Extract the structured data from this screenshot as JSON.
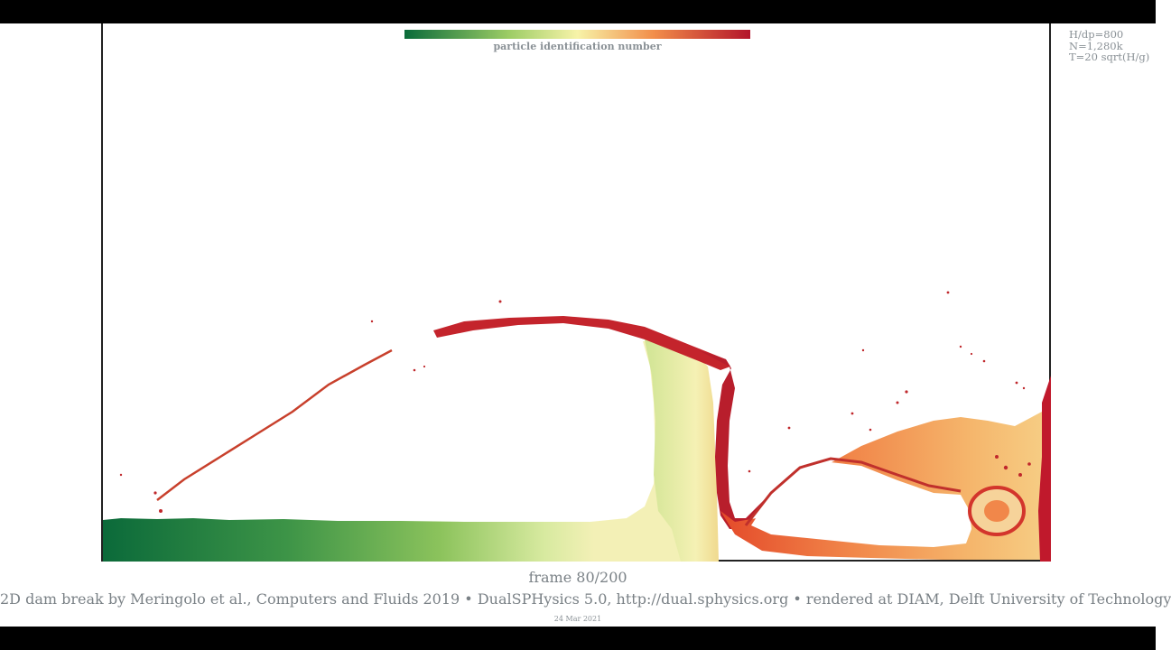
{
  "colorbar": {
    "label": "particle identification number",
    "colors": [
      "#0a6b3a",
      "#9ccc65",
      "#f7f3a8",
      "#f28e4a",
      "#b3142a"
    ]
  },
  "params": {
    "line1": "H/dp=800",
    "line2": "N=1,280k",
    "line3": "T=20 sqrt(H/g)"
  },
  "frame": {
    "label": "frame 80/200",
    "current": 80,
    "total": 200
  },
  "credits": {
    "text": "2D dam break by Meringolo et al., Computers and Fluids 2019 • DualSPHysics 5.0, http://dual.sphysics.org • rendered at DIAM, Delft University of Technology"
  },
  "date": "24 Mar 2021"
}
